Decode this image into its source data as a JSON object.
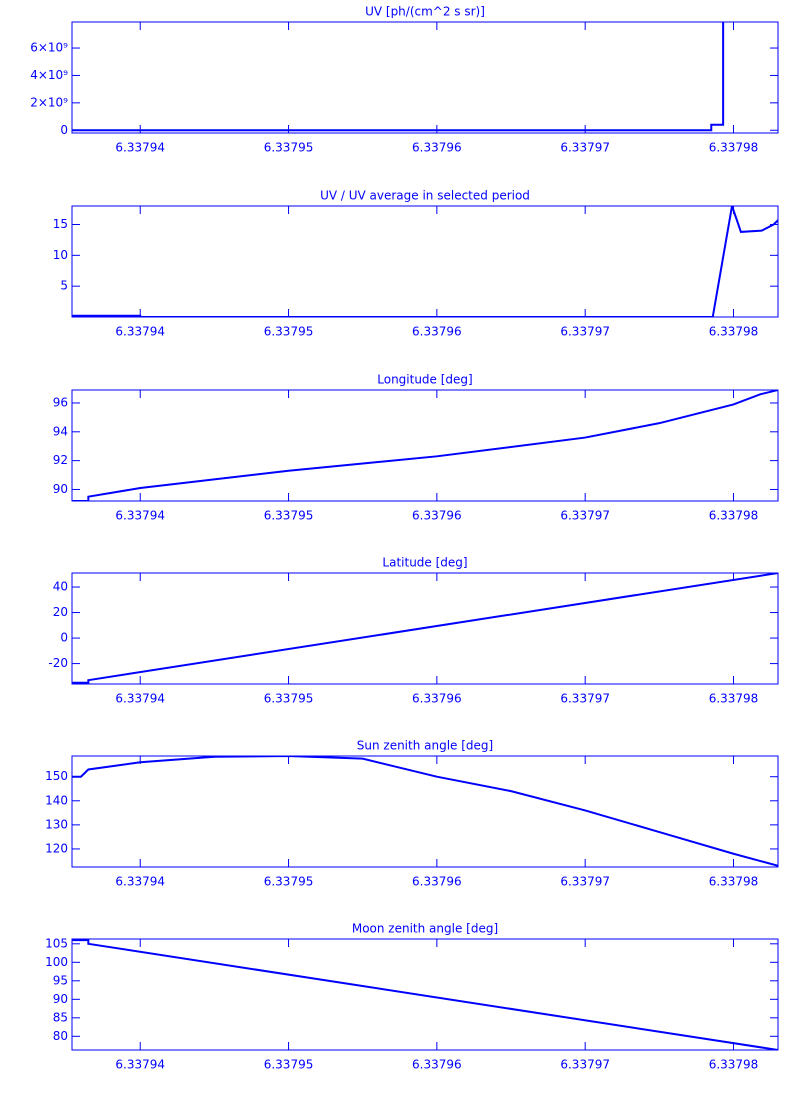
{
  "chart_data": [
    {
      "type": "line",
      "title": "UV [ph/(cm^2 s sr)]",
      "color": "#0000ff",
      "x": [
        6.3379354,
        6.3379785,
        6.3379785,
        6.3379793,
        6.3379793
      ],
      "values": [
        0,
        0,
        400000000,
        400000000,
        7900000000
      ],
      "xlim": [
        6.3379354,
        6.337983
      ],
      "xticks": [
        6.33794,
        6.33795,
        6.33796,
        6.33797,
        6.33798
      ],
      "ylim": [
        -200000000,
        7900000000
      ],
      "yticks": [
        {
          "value": 0,
          "label": "0"
        },
        {
          "value": 2000000000,
          "label": "2×10⁹"
        },
        {
          "value": 4000000000,
          "label": "4×10⁹"
        },
        {
          "value": 6000000000,
          "label": "6×10⁹"
        }
      ]
    },
    {
      "type": "line",
      "title": "UV / UV average in selected period",
      "color": "#0000ff",
      "x": [
        6.3379354,
        6.33794,
        6.33794,
        6.3379786,
        6.3379799,
        6.3379805,
        6.3379819,
        6.3379827,
        6.337983
      ],
      "values": [
        0.2,
        0.2,
        0,
        0,
        18,
        13.8,
        14,
        15,
        15.7
      ],
      "xlim": [
        6.3379354,
        6.337983
      ],
      "xticks": [
        6.33794,
        6.33795,
        6.33796,
        6.33797,
        6.33798
      ],
      "ylim": [
        0,
        18
      ],
      "yticks": [
        5,
        10,
        15
      ]
    },
    {
      "type": "line",
      "title": "Longitude [deg]",
      "color": "#0000ff",
      "x": [
        6.3379354,
        6.3379365,
        6.3379365,
        6.33794,
        6.33795,
        6.33796,
        6.33797,
        6.337975,
        6.33798,
        6.3379818,
        6.337983
      ],
      "values": [
        89.2,
        89.2,
        89.5,
        90.1,
        91.3,
        92.3,
        93.6,
        94.6,
        95.9,
        96.6,
        96.9
      ],
      "xlim": [
        6.3379354,
        6.337983
      ],
      "xticks": [
        6.33794,
        6.33795,
        6.33796,
        6.33797,
        6.33798
      ],
      "ylim": [
        89.2,
        96.9
      ],
      "yticks": [
        90,
        92,
        94,
        96
      ]
    },
    {
      "type": "line",
      "title": "Latitude [deg]",
      "color": "#0000ff",
      "x": [
        6.3379354,
        6.3379365,
        6.3379365,
        6.337983
      ],
      "values": [
        -35,
        -35,
        -33,
        51
      ],
      "xlim": [
        6.3379354,
        6.337983
      ],
      "xticks": [
        6.33794,
        6.33795,
        6.33796,
        6.33797,
        6.33798
      ],
      "ylim": [
        -36,
        51
      ],
      "yticks": [
        -20,
        0,
        20,
        40
      ]
    },
    {
      "type": "line",
      "title": "Sun zenith angle [deg]",
      "color": "#0000ff",
      "x": [
        6.3379354,
        6.337936,
        6.3379365,
        6.33794,
        6.337945,
        6.33795,
        6.337955,
        6.33796,
        6.337965,
        6.33797,
        6.337975,
        6.33798,
        6.337983
      ],
      "values": [
        150,
        150,
        153,
        156,
        158.3,
        158.6,
        157.5,
        150,
        144,
        136,
        127,
        118,
        113
      ],
      "xlim": [
        6.3379354,
        6.337983
      ],
      "xticks": [
        6.33794,
        6.33795,
        6.33796,
        6.33797,
        6.33798
      ],
      "ylim": [
        112.5,
        158.6
      ],
      "yticks": [
        120,
        130,
        140,
        150
      ]
    },
    {
      "type": "line",
      "title": "Moon zenith angle [deg]",
      "color": "#0000ff",
      "x": [
        6.3379354,
        6.3379365,
        6.3379365,
        6.337983
      ],
      "values": [
        106,
        106,
        105,
        76.3
      ],
      "xlim": [
        6.3379354,
        6.337983
      ],
      "xticks": [
        6.33794,
        6.33795,
        6.33796,
        6.33797,
        6.33798
      ],
      "ylim": [
        76.3,
        106.3
      ],
      "yticks": [
        80,
        85,
        90,
        95,
        100,
        105
      ]
    }
  ]
}
